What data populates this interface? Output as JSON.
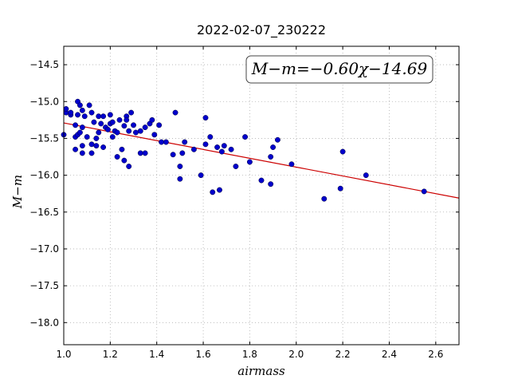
{
  "chart_data": {
    "type": "scatter",
    "title": "2022-02-07_230222",
    "xlabel": "airmass",
    "ylabel": "M−m",
    "xlim": [
      1.0,
      2.7
    ],
    "ylim": [
      -18.3,
      -14.25
    ],
    "y_inverted": true,
    "grid": true,
    "xticks": [
      1.0,
      1.2,
      1.4,
      1.6,
      1.8,
      2.0,
      2.2,
      2.4,
      2.6
    ],
    "xtick_labels": [
      "1.0",
      "1.2",
      "1.4",
      "1.6",
      "1.8",
      "2.0",
      "2.2",
      "2.4",
      "2.6"
    ],
    "yticks": [
      -14.5,
      -15.0,
      -15.5,
      -16.0,
      -16.5,
      -17.0,
      -17.5,
      -18.0
    ],
    "ytick_labels": [
      "−14.5",
      "−15.0",
      "−15.5",
      "−16.0",
      "−16.5",
      "−17.0",
      "−17.5",
      "−18.0"
    ],
    "annotation": "M−m=−0.60χ−14.69",
    "fit": {
      "slope": -0.6,
      "intercept": -14.69,
      "x_range": [
        1.0,
        2.7
      ],
      "color": "#cc0000"
    },
    "point_color": "#0000cc",
    "points": [
      [
        1.0,
        -15.45
      ],
      [
        1.01,
        -15.15
      ],
      [
        1.01,
        -15.1
      ],
      [
        1.03,
        -15.18
      ],
      [
        1.03,
        -15.15
      ],
      [
        1.05,
        -15.32
      ],
      [
        1.05,
        -15.48
      ],
      [
        1.05,
        -15.65
      ],
      [
        1.06,
        -15.0
      ],
      [
        1.06,
        -15.18
      ],
      [
        1.06,
        -15.45
      ],
      [
        1.07,
        -15.05
      ],
      [
        1.07,
        -15.42
      ],
      [
        1.08,
        -15.6
      ],
      [
        1.08,
        -15.7
      ],
      [
        1.08,
        -15.12
      ],
      [
        1.08,
        -15.35
      ],
      [
        1.09,
        -15.2
      ],
      [
        1.1,
        -15.48
      ],
      [
        1.11,
        -15.05
      ],
      [
        1.12,
        -15.15
      ],
      [
        1.12,
        -15.58
      ],
      [
        1.12,
        -15.7
      ],
      [
        1.13,
        -15.28
      ],
      [
        1.14,
        -15.5
      ],
      [
        1.14,
        -15.6
      ],
      [
        1.15,
        -15.2
      ],
      [
        1.15,
        -15.42
      ],
      [
        1.16,
        -15.3
      ],
      [
        1.17,
        -15.62
      ],
      [
        1.17,
        -15.2
      ],
      [
        1.18,
        -15.35
      ],
      [
        1.19,
        -15.38
      ],
      [
        1.2,
        -15.18
      ],
      [
        1.2,
        -15.3
      ],
      [
        1.21,
        -15.28
      ],
      [
        1.21,
        -15.48
      ],
      [
        1.22,
        -15.4
      ],
      [
        1.23,
        -15.42
      ],
      [
        1.23,
        -15.75
      ],
      [
        1.24,
        -15.25
      ],
      [
        1.25,
        -15.65
      ],
      [
        1.26,
        -15.33
      ],
      [
        1.26,
        -15.8
      ],
      [
        1.27,
        -15.2
      ],
      [
        1.27,
        -15.25
      ],
      [
        1.28,
        -15.4
      ],
      [
        1.28,
        -15.88
      ],
      [
        1.29,
        -15.15
      ],
      [
        1.3,
        -15.32
      ],
      [
        1.31,
        -15.42
      ],
      [
        1.33,
        -15.4
      ],
      [
        1.33,
        -15.7
      ],
      [
        1.35,
        -15.35
      ],
      [
        1.35,
        -15.7
      ],
      [
        1.37,
        -15.3
      ],
      [
        1.38,
        -15.25
      ],
      [
        1.39,
        -15.45
      ],
      [
        1.41,
        -15.32
      ],
      [
        1.42,
        -15.55
      ],
      [
        1.44,
        -15.55
      ],
      [
        1.47,
        -15.72
      ],
      [
        1.48,
        -15.15
      ],
      [
        1.5,
        -15.88
      ],
      [
        1.5,
        -16.05
      ],
      [
        1.51,
        -15.7
      ],
      [
        1.52,
        -15.55
      ],
      [
        1.56,
        -15.65
      ],
      [
        1.59,
        -16.0
      ],
      [
        1.61,
        -15.58
      ],
      [
        1.61,
        -15.22
      ],
      [
        1.63,
        -15.48
      ],
      [
        1.64,
        -16.23
      ],
      [
        1.66,
        -15.62
      ],
      [
        1.67,
        -16.2
      ],
      [
        1.68,
        -15.68
      ],
      [
        1.69,
        -15.6
      ],
      [
        1.72,
        -15.65
      ],
      [
        1.74,
        -15.88
      ],
      [
        1.78,
        -15.48
      ],
      [
        1.8,
        -15.82
      ],
      [
        1.85,
        -16.07
      ],
      [
        1.89,
        -16.12
      ],
      [
        1.89,
        -15.75
      ],
      [
        1.9,
        -15.62
      ],
      [
        1.92,
        -15.52
      ],
      [
        1.98,
        -15.85
      ],
      [
        2.12,
        -16.32
      ],
      [
        2.19,
        -16.18
      ],
      [
        2.2,
        -15.68
      ],
      [
        2.3,
        -16.0
      ],
      [
        2.55,
        -16.22
      ]
    ]
  }
}
